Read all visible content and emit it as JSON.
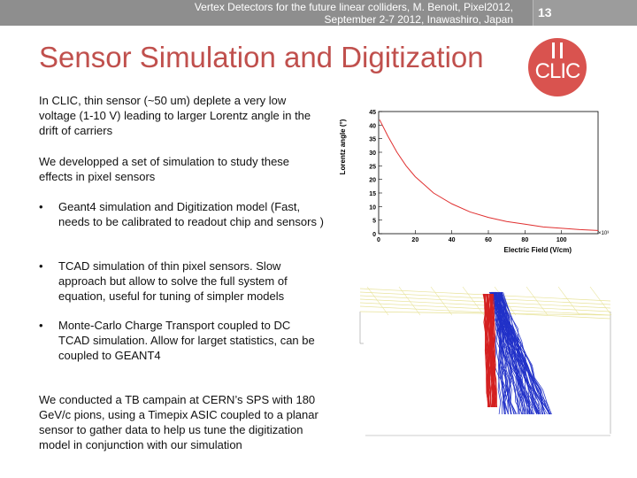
{
  "header": {
    "conference": "Vertex Detectors for the future linear colliders, M. Benoit, Pixel2012, September 2-7 2012, Inawashiro, Japan",
    "slide_number": "13"
  },
  "title": "Sensor Simulation and Digitization",
  "logo": {
    "text": "CLIC",
    "color": "#d9534f"
  },
  "body": {
    "para1": "In CLIC, thin sensor (~50 um) deplete a very low voltage (1-10 V) leading to larger Lorentz angle in the drift of carriers",
    "para2": "We developped a set of simulation to study these effects in pixel sensors",
    "bullets": [
      "Geant4 simulation and Digitization model (Fast, needs to be calibrated to readout chip and sensors )",
      "TCAD simulation of thin pixel sensors. Slow approach but allow to solve the full system of equation, useful for tuning of simpler models",
      "Monte-Carlo Charge Transport coupled to DC TCAD simulation. Allow for larget statistics, can be coupled to GEANT4"
    ],
    "bullet_marker": "•",
    "para3": "We conducted a TB campain at CERN’s SPS with 180 GeV/c pions, using a Timepix ASIC coupled to a planar sensor to gather data to help us tune the digitization model in conjunction with our simulation"
  },
  "chart_data": {
    "type": "line",
    "xlabel": "Electric Field (V/cm)",
    "ylabel": "Lorentz angle (°)",
    "x_exponent_label": "×10³",
    "xlim": [
      0,
      120
    ],
    "ylim": [
      0,
      45
    ],
    "xticks": [
      0,
      20,
      40,
      60,
      80,
      100
    ],
    "yticks": [
      0,
      5,
      10,
      15,
      20,
      25,
      30,
      35,
      40,
      45
    ],
    "line_color": "#e03030",
    "x": [
      0.5,
      2,
      5,
      10,
      15,
      20,
      25,
      30,
      40,
      50,
      60,
      70,
      80,
      90,
      100,
      110,
      120
    ],
    "y": [
      42,
      40,
      36,
      30,
      25,
      21,
      18,
      15,
      11,
      8,
      6,
      4.5,
      3.5,
      2.5,
      2,
      1.5,
      1.2
    ]
  },
  "simulation_figure": {
    "description_colors": {
      "box": "#e8e39a",
      "electrons": "#d42020",
      "holes": "#2030c8"
    }
  }
}
